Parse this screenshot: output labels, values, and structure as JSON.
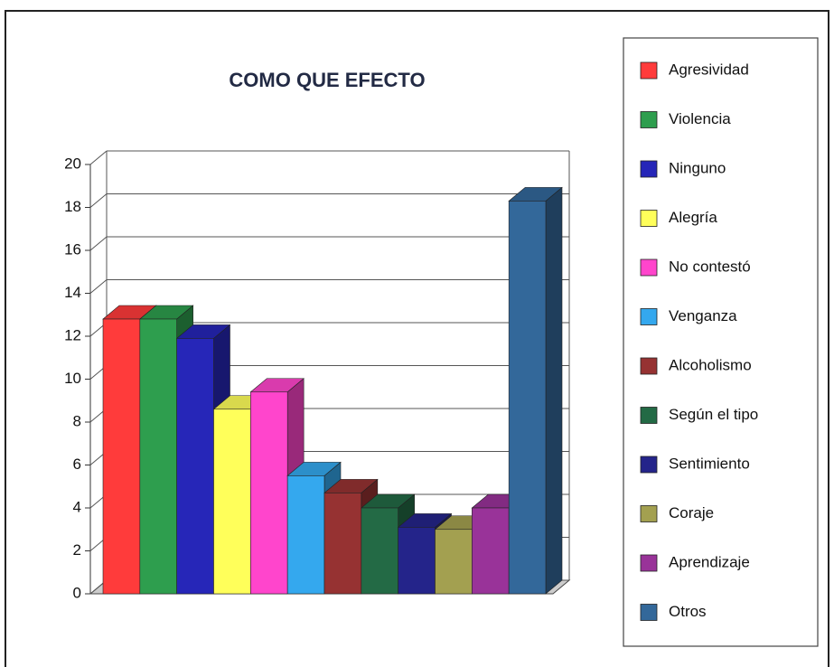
{
  "chart_data": {
    "type": "bar3d",
    "title": "COMO QUE EFECTO",
    "categories": [
      "Agresividad",
      "Violencia",
      "Ninguno",
      "Alegría",
      "No contestó",
      "Venganza",
      "Alcoholismo",
      "Según el tipo",
      "Sentimiento",
      "Coraje",
      "Aprendizaje",
      "Otros"
    ],
    "values": [
      12.8,
      12.8,
      11.9,
      8.6,
      9.4,
      5.5,
      4.7,
      4.0,
      3.1,
      3.0,
      4.0,
      18.3
    ],
    "colors": [
      "#ff3b3b",
      "#2e9e4e",
      "#2626b8",
      "#ffff5a",
      "#ff45cc",
      "#34a8ee",
      "#963232",
      "#236a45",
      "#24248a",
      "#a3a050",
      "#993399",
      "#33689a"
    ],
    "ylim": [
      0,
      20
    ],
    "yticks": [
      0,
      2,
      4,
      6,
      8,
      10,
      12,
      14,
      16,
      18,
      20
    ],
    "grid": true,
    "legend": "right"
  }
}
